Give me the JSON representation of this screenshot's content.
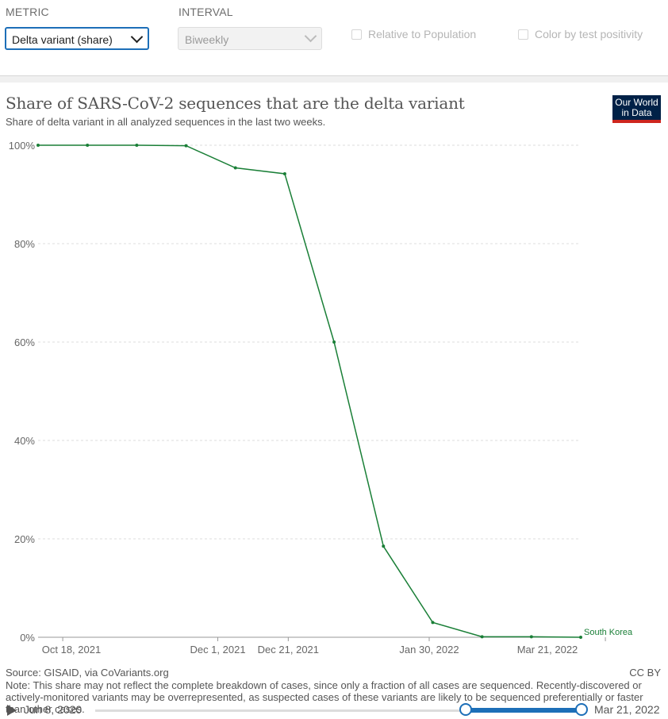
{
  "controls": {
    "metric_label": "METRIC",
    "metric_value": "Delta variant (share)",
    "interval_label": "INTERVAL",
    "interval_value": "Biweekly",
    "relative_label": "Relative to Population",
    "color_label": "Color by test positivity"
  },
  "header": {
    "title": "Share of SARS-CoV-2 sequences that are the delta variant",
    "subtitle": "Share of delta variant in all analyzed sequences in the last two weeks.",
    "logo_line1": "Our World",
    "logo_line2": "in Data"
  },
  "chart_data": {
    "type": "line",
    "title": "Share of SARS-CoV-2 sequences that are the delta variant",
    "subtitle": "Share of delta variant in all analyzed sequences in the last two weeks.",
    "xlabel": "",
    "ylabel": "",
    "ylim": [
      0,
      100
    ],
    "y_ticks": [
      "0%",
      "20%",
      "40%",
      "60%",
      "80%",
      "100%"
    ],
    "x_ticks": [
      "Oct 18, 2021",
      "Dec 1, 2021",
      "Dec 21, 2021",
      "Jan 30, 2022",
      "Mar 21, 2022"
    ],
    "grid": true,
    "line_color": "#1a7f37",
    "series": [
      {
        "name": "South Korea",
        "x": [
          "2021-10-11",
          "2021-10-25",
          "2021-11-08",
          "2021-11-22",
          "2021-12-06",
          "2021-12-20",
          "2022-01-03",
          "2022-01-17",
          "2022-01-31",
          "2022-02-14",
          "2022-02-28",
          "2022-03-14"
        ],
        "values": [
          100,
          100,
          100,
          99.9,
          95.4,
          94.2,
          60,
          18.5,
          3,
          0.1,
          0.1,
          0
        ]
      }
    ]
  },
  "footer": {
    "source": "Source: GISAID, via CoVariants.org",
    "license": "CC BY",
    "note": "Note: This share may not reflect the complete breakdown of cases, since only a fraction of all cases are sequenced. Recently-discovered or actively-monitored variants may be overrepresented, as suspected cases of these variants are likely to be sequenced preferentially or faster than other cases."
  },
  "timeline": {
    "start_label": "Jun 8, 2020",
    "end_label": "Mar 21, 2022",
    "colors": {
      "accent": "#1d6fb8"
    }
  }
}
